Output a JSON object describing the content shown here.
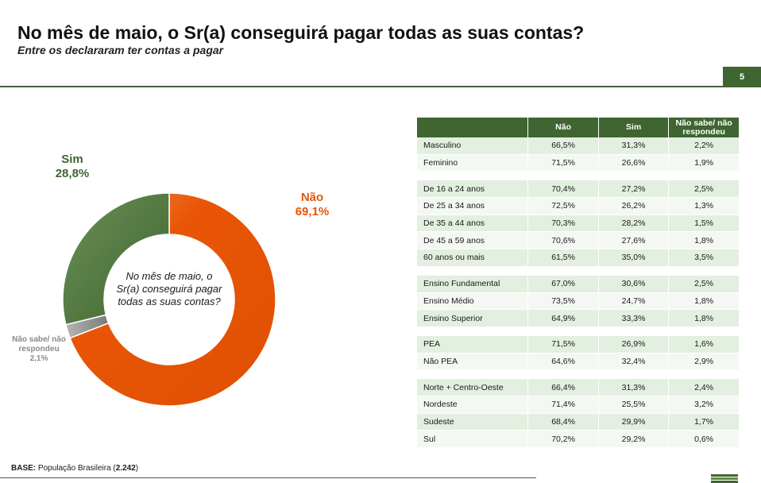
{
  "header": {
    "title": "No mês de maio, o Sr(a) conseguirá pagar todas as suas contas?",
    "subtitle": "Entre os declararam ter contas a pagar",
    "page_number": "5"
  },
  "colors": {
    "nao": "#e85506",
    "nao_light": "#f07a3a",
    "sim": "#4a6d3a",
    "sim_light": "#6a8f55",
    "nao_sabe": "#9a9a9a",
    "brand_green": "#3f6531"
  },
  "chart_data": [
    {
      "type": "pie",
      "style": "donut",
      "center_text": "No mês de maio, o Sr(a) conseguirá pagar todas as suas contas?",
      "slices": [
        {
          "name": "Não",
          "value": 69.1,
          "label": "69,1%",
          "color": "#e85506"
        },
        {
          "name": "Sim",
          "value": 28.8,
          "label": "28,8%",
          "color": "#4a6d3a"
        },
        {
          "name": "Não sabe/ não respondeu",
          "value": 2.1,
          "label": "2,1%",
          "color": "#9a9a9a"
        }
      ]
    },
    {
      "type": "table",
      "columns": [
        "",
        "Não",
        "Sim",
        "Não sabe/ não respondeu"
      ],
      "groups": [
        {
          "rows": [
            {
              "label": "Masculino",
              "values": [
                "66,5%",
                "31,3%",
                "2,2%"
              ]
            },
            {
              "label": "Feminino",
              "values": [
                "71,5%",
                "26,6%",
                "1,9%"
              ]
            }
          ]
        },
        {
          "rows": [
            {
              "label": "De 16 a 24 anos",
              "values": [
                "70,4%",
                "27,2%",
                "2,5%"
              ]
            },
            {
              "label": "De 25 a 34 anos",
              "values": [
                "72,5%",
                "26,2%",
                "1,3%"
              ]
            },
            {
              "label": "De 35 a 44 anos",
              "values": [
                "70,3%",
                "28,2%",
                "1,5%"
              ]
            },
            {
              "label": "De 45 a 59 anos",
              "values": [
                "70,6%",
                "27,6%",
                "1,8%"
              ]
            },
            {
              "label": "60 anos ou mais",
              "values": [
                "61,5%",
                "35,0%",
                "3,5%"
              ]
            }
          ]
        },
        {
          "rows": [
            {
              "label": "Ensino Fundamental",
              "values": [
                "67,0%",
                "30,6%",
                "2,5%"
              ]
            },
            {
              "label": "Ensino Médio",
              "values": [
                "73,5%",
                "24,7%",
                "1,8%"
              ]
            },
            {
              "label": "Ensino Superior",
              "values": [
                "64,9%",
                "33,3%",
                "1,8%"
              ]
            }
          ]
        },
        {
          "rows": [
            {
              "label": "PEA",
              "values": [
                "71,5%",
                "26,9%",
                "1,6%"
              ]
            },
            {
              "label": "Não PEA",
              "values": [
                "64,6%",
                "32,4%",
                "2,9%"
              ]
            }
          ]
        },
        {
          "rows": [
            {
              "label": "Norte + Centro-Oeste",
              "values": [
                "66,4%",
                "31,3%",
                "2,4%"
              ]
            },
            {
              "label": "Nordeste",
              "values": [
                "71,4%",
                "25,5%",
                "3,2%"
              ]
            },
            {
              "label": "Sudeste",
              "values": [
                "68,4%",
                "29,9%",
                "1,7%"
              ]
            },
            {
              "label": "Sul",
              "values": [
                "70,2%",
                "29,2%",
                "0,6%"
              ]
            }
          ]
        }
      ]
    }
  ],
  "footer": {
    "base_label": "BASE:",
    "base_text": "População Brasileira (",
    "base_n": "2.242",
    "base_close": ")"
  }
}
